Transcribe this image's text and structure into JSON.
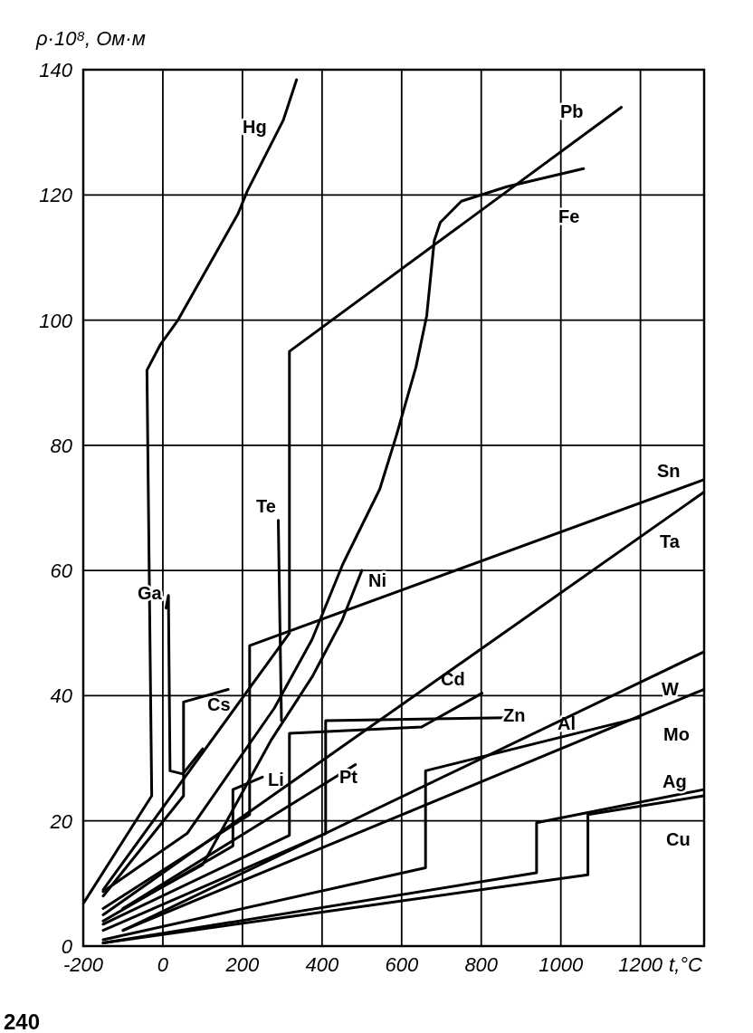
{
  "chart_data": {
    "type": "line",
    "ylabel": "ρ·10⁸, Ом·м",
    "xlabel": "t,°C",
    "annotations": [
      "240"
    ],
    "xlim": [
      -200,
      1360
    ],
    "ylim": [
      0,
      140
    ],
    "xticks": [
      -200,
      0,
      200,
      400,
      600,
      800,
      1000,
      1200
    ],
    "yticks": [
      0,
      20,
      40,
      60,
      80,
      100,
      120,
      140
    ],
    "grid": true,
    "series": [
      {
        "name": "Hg",
        "color": "#000000",
        "x": [
          -198,
          -28,
          -40,
          -7,
          38,
          189,
          212,
          303,
          336
        ],
        "values": [
          7,
          24,
          92,
          96,
          100,
          117,
          120.6,
          132,
          138.4
        ]
      },
      {
        "name": "Pb",
        "color": "#000000",
        "x": [
          -150,
          318,
          318,
          1152
        ],
        "values": [
          9,
          50,
          95,
          134
        ]
      },
      {
        "name": "Fe",
        "color": "#000000",
        "x": [
          -150,
          61,
          280,
          375,
          452,
          545,
          586,
          636,
          663,
          682,
          697,
          750,
          864,
          1057
        ],
        "values": [
          8.7,
          18,
          38,
          49,
          61,
          73,
          81.4,
          92.5,
          100.7,
          112.7,
          115.6,
          119,
          121.3,
          124.2
        ]
      },
      {
        "name": "Te",
        "color": "#000000",
        "x": [
          290,
          298
        ],
        "values": [
          68,
          36
        ]
      },
      {
        "name": "Ga",
        "color": "#000000",
        "x": [
          8,
          14,
          18,
          50,
          100
        ],
        "values": [
          54,
          56,
          28,
          27.5,
          31.5
        ]
      },
      {
        "name": "Cs",
        "color": "#000000",
        "x": [
          -150,
          52,
          52,
          164
        ],
        "values": [
          8,
          24,
          39,
          41
        ]
      },
      {
        "name": "Ni",
        "color": "#000000",
        "x": [
          -100,
          100,
          273,
          375,
          450,
          500
        ],
        "values": [
          6,
          13,
          33,
          43,
          52,
          60
        ]
      },
      {
        "name": "Cd",
        "color": "#000000",
        "x": [
          -150,
          318,
          318,
          650,
          802
        ],
        "values": [
          3.5,
          17.7,
          34,
          35,
          40.4
        ]
      },
      {
        "name": "Zn",
        "color": "#000000",
        "x": [
          -150,
          409,
          409,
          868
        ],
        "values": [
          2.5,
          18,
          36,
          36.5
        ]
      },
      {
        "name": "Al",
        "color": "#000000",
        "x": [
          -150,
          660,
          660,
          1198
        ],
        "values": [
          1,
          12.5,
          28,
          36.5
        ]
      },
      {
        "name": "Pt",
        "color": "#000000",
        "x": [
          -100,
          484
        ],
        "values": [
          6,
          29
        ]
      },
      {
        "name": "Li",
        "color": "#000000",
        "x": [
          -150,
          176,
          176,
          250
        ],
        "values": [
          4,
          16,
          25,
          27
        ]
      },
      {
        "name": "Sn",
        "color": "#000000",
        "x": [
          -150,
          218,
          218,
          1359
        ],
        "values": [
          6,
          21,
          48,
          74.5
        ]
      },
      {
        "name": "Ta",
        "color": "#000000",
        "x": [
          -150,
          1359
        ],
        "values": [
          5,
          72.5
        ]
      },
      {
        "name": "W",
        "color": "#000000",
        "x": [
          -100,
          1359
        ],
        "values": [
          2.5,
          47
        ]
      },
      {
        "name": "Mo",
        "color": "#000000",
        "x": [
          -100,
          1359
        ],
        "values": [
          2.5,
          41
        ]
      },
      {
        "name": "Ag",
        "color": "#000000",
        "x": [
          -150,
          939,
          939,
          1359
        ],
        "values": [
          0.5,
          11.7,
          19.7,
          25
        ]
      },
      {
        "name": "Cu",
        "color": "#000000",
        "x": [
          -150,
          1068,
          1068,
          1359
        ],
        "values": [
          0.5,
          11.4,
          21,
          24
        ]
      }
    ]
  }
}
